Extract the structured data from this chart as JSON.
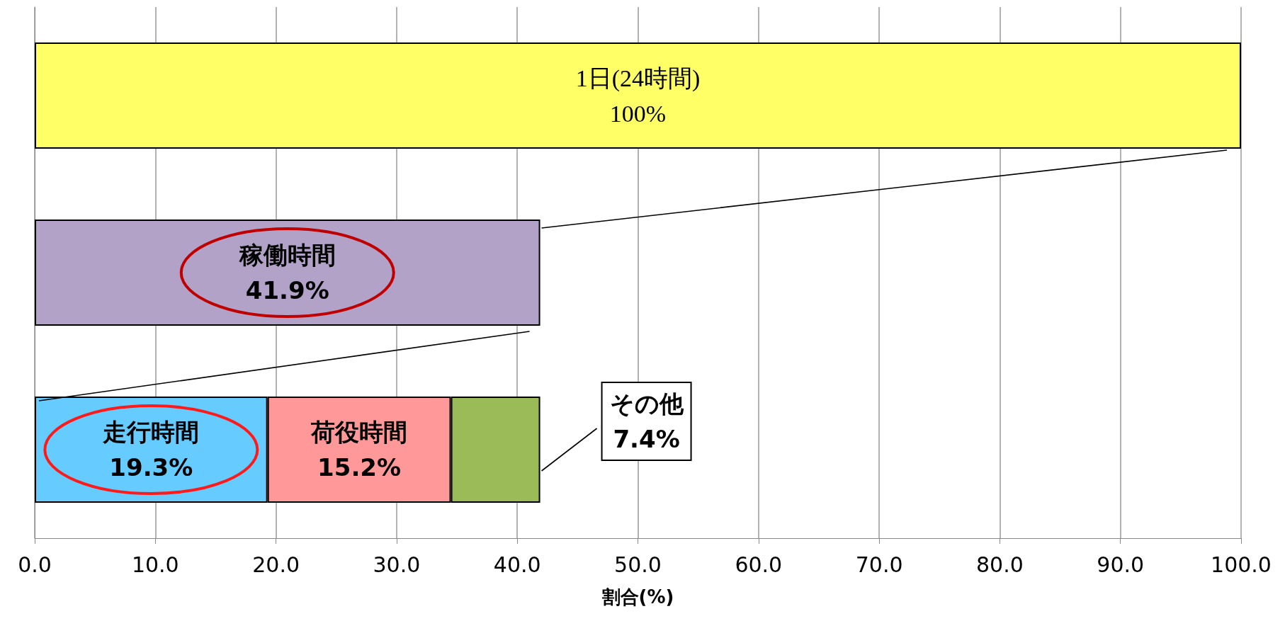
{
  "chart_data": {
    "type": "bar",
    "orientation": "horizontal",
    "stacked": true,
    "xlabel": "割合(%)",
    "categories": [
      null,
      null,
      null
    ],
    "series": [
      {
        "name": "1日(24時間)",
        "color": "#ffff66",
        "values": [
          100,
          null,
          null
        ],
        "value_labels": [
          "100%",
          null,
          null
        ]
      },
      {
        "name": "稼働時間",
        "color": "#b3a2c7",
        "values": [
          null,
          41.9,
          null
        ],
        "value_labels": [
          null,
          "41.9%",
          null
        ]
      },
      {
        "name": "走行時間",
        "color": "#66ccff",
        "values": [
          null,
          null,
          19.3
        ],
        "value_labels": [
          null,
          null,
          "19.3%"
        ]
      },
      {
        "name": "荷役時間",
        "color": "#ff9999",
        "values": [
          null,
          null,
          15.2
        ],
        "value_labels": [
          null,
          null,
          "15.2%"
        ]
      },
      {
        "name": "その他",
        "color": "#9bbb59",
        "values": [
          null,
          null,
          7.4
        ],
        "value_labels": [
          null,
          null,
          "7.4%"
        ]
      }
    ],
    "xlim": [
      0,
      100
    ],
    "xticks": [
      {
        "value": 0,
        "label": "0.0"
      },
      {
        "value": 10,
        "label": "10.0"
      },
      {
        "value": 20,
        "label": "20.0"
      },
      {
        "value": 30,
        "label": "30.0"
      },
      {
        "value": 40,
        "label": "40.0"
      },
      {
        "value": 50,
        "label": "50.0"
      },
      {
        "value": 60,
        "label": "60.0"
      },
      {
        "value": 70,
        "label": "70.0"
      },
      {
        "value": 80,
        "label": "80.0"
      },
      {
        "value": 90,
        "label": "90.0"
      },
      {
        "value": 100,
        "label": "100.0"
      }
    ],
    "grid": "x",
    "legend": false
  }
}
